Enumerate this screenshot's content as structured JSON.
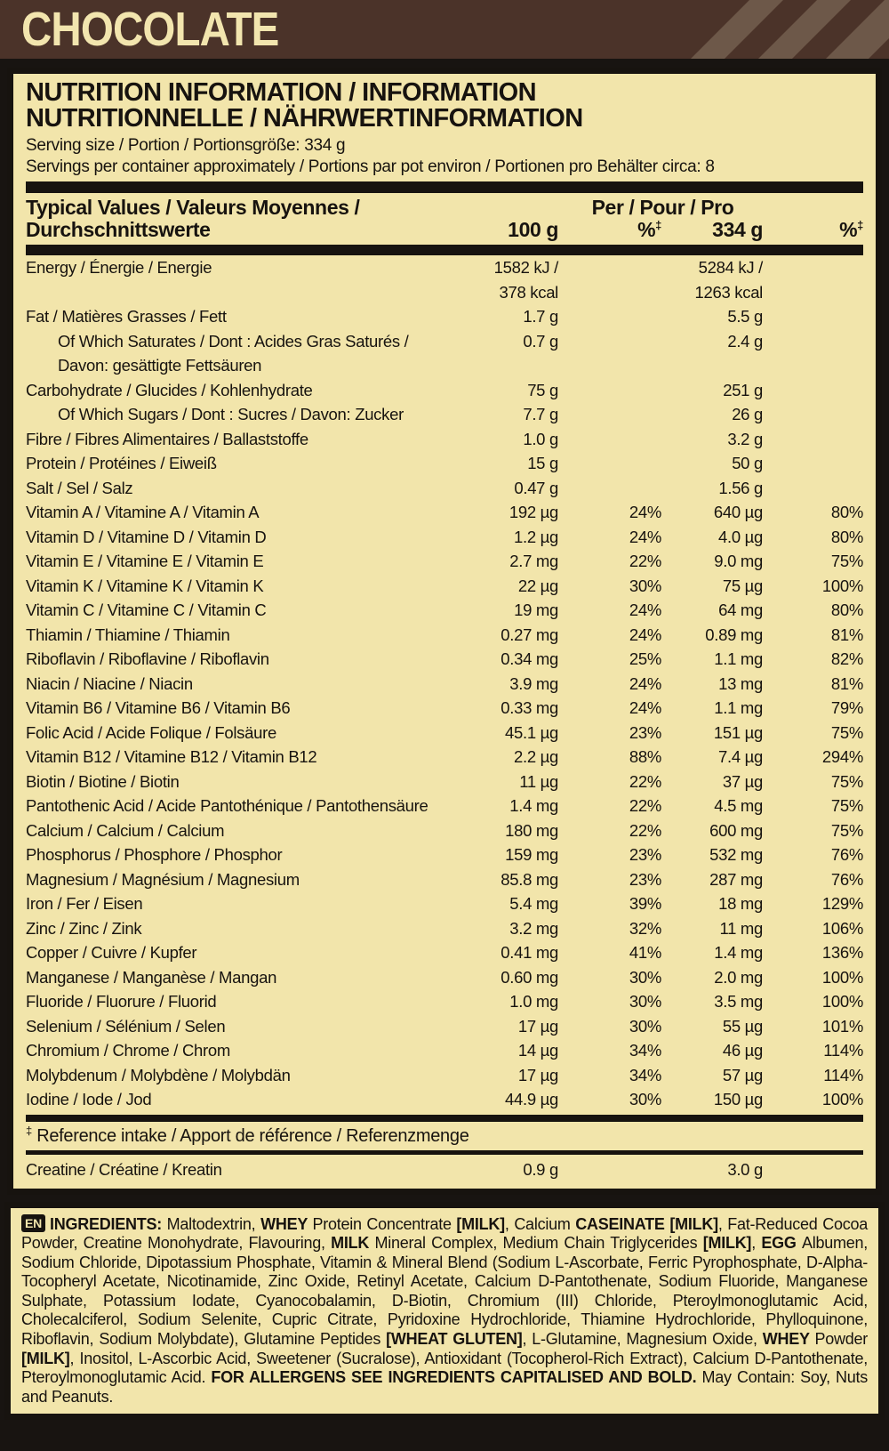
{
  "header": {
    "flavor": "CHOCOLATE"
  },
  "colors": {
    "header_brown": "#4b3329",
    "stripe_brown": "#6d5849",
    "label_cream": "#f2e5ab",
    "ink_black": "#17130f"
  },
  "panel": {
    "title_line1": "NUTRITION INFORMATION / INFORMATION",
    "title_line2": "NUTRITIONNELLE / NÄHRWERTINFORMATION",
    "serving_size": "Serving size / Portion / Portionsgröße: 334 g",
    "servings_per_container": "Servings per container approximately / Portions par pot environ / Portionen pro Behälter circa: 8",
    "table": {
      "header": {
        "typical_line1": "Typical Values / Valeurs Moyennes /",
        "typical_line2": "Durchschnittswerte",
        "per_label": "Per / Pour / Pro",
        "col_100": "100 g",
        "col_334": "334 g",
        "col_pct": "%",
        "dagger": "‡"
      },
      "rows": [
        {
          "label": "Energy / Énergie / Energie",
          "v100": [
            "1582 kJ /",
            "378 kcal"
          ],
          "p100": "",
          "v334": [
            "5284 kJ /",
            "1263 kcal"
          ],
          "p334": ""
        },
        {
          "label": "Fat / Matières Grasses / Fett",
          "v100": "1.7 g",
          "p100": "",
          "v334": "5.5 g",
          "p334": ""
        },
        {
          "label": [
            "Of Which Saturates / Dont : Acides Gras Saturés /",
            "Davon: gesättigte Fettsäuren"
          ],
          "indent": true,
          "v100": "0.7 g",
          "p100": "",
          "v334": "2.4 g",
          "p334": ""
        },
        {
          "label": "Carbohydrate / Glucides / Kohlenhydrate",
          "v100": "75 g",
          "p100": "",
          "v334": "251 g",
          "p334": ""
        },
        {
          "label": "Of Which Sugars / Dont : Sucres / Davon: Zucker",
          "indent": true,
          "v100": "7.7 g",
          "p100": "",
          "v334": "26 g",
          "p334": ""
        },
        {
          "label": "Fibre / Fibres Alimentaires / Ballaststoffe",
          "v100": "1.0 g",
          "p100": "",
          "v334": "3.2 g",
          "p334": ""
        },
        {
          "label": "Protein / Protéines / Eiweiß",
          "v100": "15 g",
          "p100": "",
          "v334": "50 g",
          "p334": ""
        },
        {
          "label": "Salt / Sel / Salz",
          "v100": "0.47 g",
          "p100": "",
          "v334": "1.56 g",
          "p334": ""
        },
        {
          "label": "Vitamin A / Vitamine A / Vitamin A",
          "v100": "192 µg",
          "p100": "24%",
          "v334": "640 µg",
          "p334": "80%"
        },
        {
          "label": "Vitamin D / Vitamine D / Vitamin D",
          "v100": "1.2 µg",
          "p100": "24%",
          "v334": "4.0 µg",
          "p334": "80%"
        },
        {
          "label": "Vitamin E / Vitamine E / Vitamin E",
          "v100": "2.7 mg",
          "p100": "22%",
          "v334": "9.0 mg",
          "p334": "75%"
        },
        {
          "label": "Vitamin K / Vitamine K / Vitamin K",
          "v100": "22 µg",
          "p100": "30%",
          "v334": "75 µg",
          "p334": "100%"
        },
        {
          "label": "Vitamin C / Vitamine C / Vitamin C",
          "v100": "19 mg",
          "p100": "24%",
          "v334": "64 mg",
          "p334": "80%"
        },
        {
          "label": "Thiamin / Thiamine / Thiamin",
          "v100": "0.27 mg",
          "p100": "24%",
          "v334": "0.89 mg",
          "p334": "81%"
        },
        {
          "label": "Riboflavin / Riboflavine / Riboflavin",
          "v100": "0.34 mg",
          "p100": "25%",
          "v334": "1.1 mg",
          "p334": "82%"
        },
        {
          "label": "Niacin / Niacine / Niacin",
          "v100": "3.9 mg",
          "p100": "24%",
          "v334": "13 mg",
          "p334": "81%"
        },
        {
          "label": "Vitamin B6 / Vitamine B6 / Vitamin B6",
          "v100": "0.33 mg",
          "p100": "24%",
          "v334": "1.1 mg",
          "p334": "79%"
        },
        {
          "label": "Folic Acid / Acide Folique / Folsäure",
          "v100": "45.1 µg",
          "p100": "23%",
          "v334": "151 µg",
          "p334": "75%"
        },
        {
          "label": "Vitamin B12 / Vitamine B12 / Vitamin B12",
          "v100": "2.2 µg",
          "p100": "88%",
          "v334": "7.4 µg",
          "p334": "294%"
        },
        {
          "label": "Biotin / Biotine / Biotin",
          "v100": "11 µg",
          "p100": "22%",
          "v334": "37 µg",
          "p334": "75%"
        },
        {
          "label": "Pantothenic Acid / Acide Pantothénique / Pantothensäure",
          "v100": "1.4 mg",
          "p100": "22%",
          "v334": "4.5 mg",
          "p334": "75%"
        },
        {
          "label": "Calcium / Calcium / Calcium",
          "v100": "180 mg",
          "p100": "22%",
          "v334": "600 mg",
          "p334": "75%"
        },
        {
          "label": "Phosphorus / Phosphore / Phosphor",
          "v100": "159 mg",
          "p100": "23%",
          "v334": "532 mg",
          "p334": "76%"
        },
        {
          "label": "Magnesium / Magnésium / Magnesium",
          "v100": "85.8 mg",
          "p100": "23%",
          "v334": "287 mg",
          "p334": "76%"
        },
        {
          "label": "Iron / Fer / Eisen",
          "v100": "5.4 mg",
          "p100": "39%",
          "v334": "18 mg",
          "p334": "129%"
        },
        {
          "label": "Zinc / Zinc / Zink",
          "v100": "3.2 mg",
          "p100": "32%",
          "v334": "11 mg",
          "p334": "106%"
        },
        {
          "label": "Copper / Cuivre / Kupfer",
          "v100": "0.41 mg",
          "p100": "41%",
          "v334": "1.4 mg",
          "p334": "136%"
        },
        {
          "label": "Manganese / Manganèse / Mangan",
          "v100": "0.60 mg",
          "p100": "30%",
          "v334": "2.0 mg",
          "p334": "100%"
        },
        {
          "label": "Fluoride / Fluorure / Fluorid",
          "v100": "1.0 mg",
          "p100": "30%",
          "v334": "3.5 mg",
          "p334": "100%"
        },
        {
          "label": "Selenium / Sélénium / Selen",
          "v100": "17 µg",
          "p100": "30%",
          "v334": "55 µg",
          "p334": "101%"
        },
        {
          "label": "Chromium / Chrome / Chrom",
          "v100": "14 µg",
          "p100": "34%",
          "v334": "46 µg",
          "p334": "114%"
        },
        {
          "label": "Molybdenum / Molybdène / Molybdän",
          "v100": "17 µg",
          "p100": "34%",
          "v334": "57 µg",
          "p334": "114%"
        },
        {
          "label": "Iodine / Iode / Jod",
          "v100": "44.9 µg",
          "p100": "30%",
          "v334": "150 µg",
          "p334": "100%"
        }
      ],
      "footnote_dagger": "‡",
      "footnote_text": "Reference intake / Apport de référence / Referenzmenge",
      "creatine_row": {
        "label": "Creatine / Créatine / Kreatin",
        "v100": "0.9 g",
        "p100": "",
        "v334": "3.0 g",
        "p334": ""
      }
    }
  },
  "ingredients": {
    "lang_badge": "EN",
    "segments": [
      {
        "b": true,
        "t": "INGREDIENTS: "
      },
      {
        "b": false,
        "t": "Maltodextrin, "
      },
      {
        "b": true,
        "t": "WHEY "
      },
      {
        "b": false,
        "t": "Protein Concentrate "
      },
      {
        "b": true,
        "t": "[MILK]"
      },
      {
        "b": false,
        "t": ", Calcium "
      },
      {
        "b": true,
        "t": "CASEINATE [MILK]"
      },
      {
        "b": false,
        "t": ", Fat-Reduced Cocoa Powder, Creatine Monohydrate, Flavouring, "
      },
      {
        "b": true,
        "t": "MILK "
      },
      {
        "b": false,
        "t": "Mineral Complex, Medium Chain Triglycerides "
      },
      {
        "b": true,
        "t": "[MILK]"
      },
      {
        "b": false,
        "t": ", "
      },
      {
        "b": true,
        "t": "EGG "
      },
      {
        "b": false,
        "t": "Albumen, Sodium Chloride, Dipotassium Phosphate, Vitamin & Mineral Blend (Sodium L-Ascorbate, Ferric Pyrophosphate, D-Alpha-Tocopheryl Acetate, Nicotinamide, Zinc Oxide, Retinyl Acetate, Calcium D-Pantothenate, Sodium Fluoride, Manganese Sulphate, Potassium Iodate, Cyanocobalamin, D-Biotin, Chromium (III) Chloride, Pteroylmonoglutamic Acid, Cholecalciferol, Sodium Selenite, Cupric Citrate, Pyridoxine Hydrochloride, Thiamine Hydrochloride, Phylloquinone, Riboflavin, Sodium Molybdate), Glutamine Peptides "
      },
      {
        "b": true,
        "t": "[WHEAT GLUTEN]"
      },
      {
        "b": false,
        "t": ", L-Glutamine, Magnesium Oxide, "
      },
      {
        "b": true,
        "t": "WHEY "
      },
      {
        "b": false,
        "t": "Powder "
      },
      {
        "b": true,
        "t": "[MILK]"
      },
      {
        "b": false,
        "t": ", Inositol, L-Ascorbic Acid, Sweetener (Sucralose), Antioxidant (Tocopherol-Rich Extract), Calcium D-Pantothenate, Pteroylmonoglutamic Acid. "
      },
      {
        "b": true,
        "t": "FOR ALLERGENS SEE INGREDIENTS CAPITALISED AND BOLD."
      },
      {
        "b": false,
        "t": " May Contain: Soy, Nuts and Peanuts."
      }
    ]
  }
}
